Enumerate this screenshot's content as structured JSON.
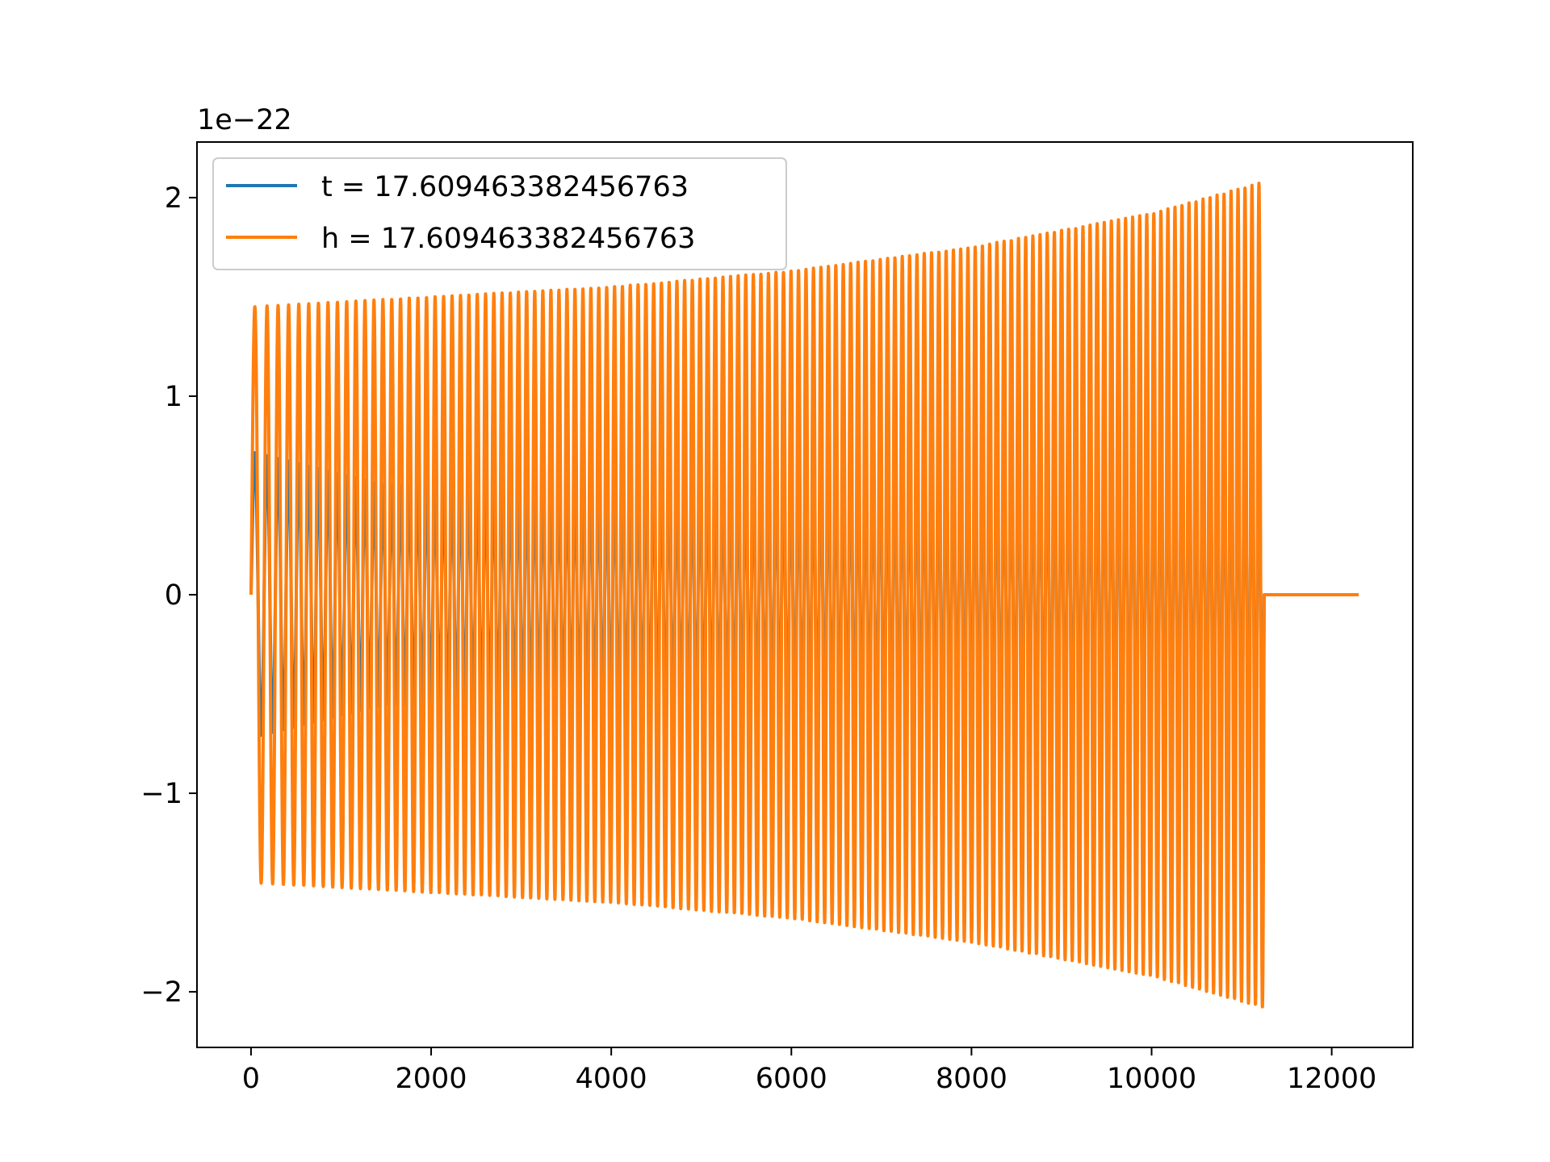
{
  "chart_data": {
    "type": "line",
    "title": "",
    "xlabel": "",
    "ylabel": "",
    "y_offset_text": "1e−22",
    "y_scale_exponent": -22,
    "xlim": [
      -600,
      12900
    ],
    "ylim": [
      -2.28,
      2.28
    ],
    "x_ticks": [
      {
        "value": 0,
        "label": "0"
      },
      {
        "value": 2000,
        "label": "2000"
      },
      {
        "value": 4000,
        "label": "4000"
      },
      {
        "value": 6000,
        "label": "6000"
      },
      {
        "value": 8000,
        "label": "8000"
      },
      {
        "value": 10000,
        "label": "10000"
      },
      {
        "value": 12000,
        "label": "12000"
      }
    ],
    "y_ticks": [
      {
        "value": -2,
        "label": "−2"
      },
      {
        "value": -1,
        "label": "−1"
      },
      {
        "value": 0,
        "label": "0"
      },
      {
        "value": 1,
        "label": "1"
      },
      {
        "value": 2,
        "label": "2"
      }
    ],
    "grid": false,
    "legend_position": "upper-left",
    "series": [
      {
        "name": "t = 17.609463382456763",
        "color": "#1f77b4",
        "x_start": 0,
        "x_end": 11250,
        "cycles": 130,
        "envelope": [
          {
            "x": 0,
            "amp": 0.72
          },
          {
            "x": 1500,
            "amp": 0.55
          },
          {
            "x": 5000,
            "amp": 0.62
          },
          {
            "x": 8000,
            "amp": 0.75
          },
          {
            "x": 11250,
            "amp": 0.9
          }
        ]
      },
      {
        "name": "h = 17.609463382456763",
        "color": "#ff7f0e",
        "x_start": 0,
        "x_end": 11250,
        "flat_after_to": 12300,
        "cycles": 130,
        "envelope": [
          {
            "x": 0,
            "amp": 1.45
          },
          {
            "x": 2000,
            "amp": 1.5
          },
          {
            "x": 4000,
            "amp": 1.55
          },
          {
            "x": 6000,
            "amp": 1.63
          },
          {
            "x": 8000,
            "amp": 1.75
          },
          {
            "x": 10000,
            "amp": 1.92
          },
          {
            "x": 11250,
            "amp": 2.08
          }
        ]
      }
    ]
  }
}
